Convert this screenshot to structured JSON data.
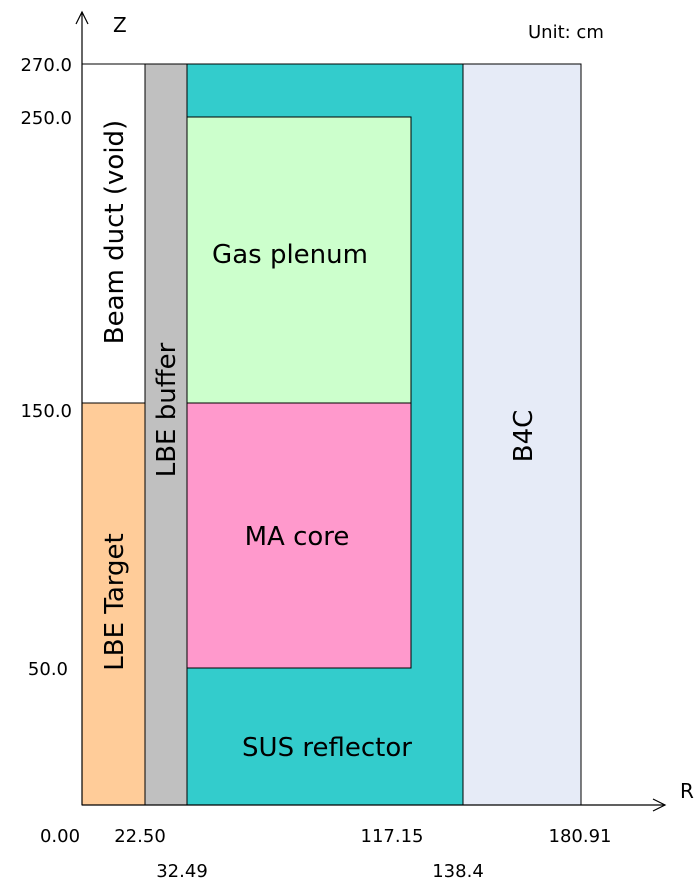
{
  "axes": {
    "z_label": "Z",
    "r_label": "R",
    "unit": "Unit: cm",
    "z_ticks": [
      "270.0",
      "250.0",
      "150.0",
      "50.0"
    ],
    "r_ticks": [
      "0.00",
      "22.50",
      "32.49",
      "117.15",
      "138.4",
      "180.91"
    ]
  },
  "regions": {
    "beam_duct": "Beam duct (void)",
    "lbe_target": "LBE Target",
    "lbe_buffer": "LBE buffer",
    "gas_plenum": "Gas plenum",
    "ma_core": "MA core",
    "sus_reflector": "SUS reflector",
    "b4c": "B4C"
  }
}
